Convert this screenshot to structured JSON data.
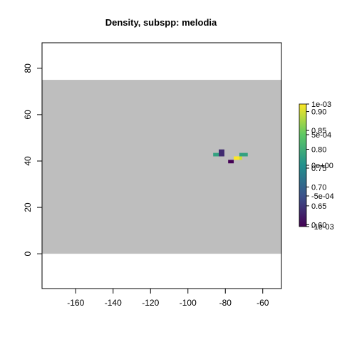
{
  "chart_data": {
    "type": "heatmap",
    "title": "Density, subspp: melodia",
    "xlabel": "",
    "ylabel": "",
    "xlim": [
      -178,
      -50
    ],
    "ylim": [
      -15,
      91
    ],
    "x_ticks": [
      -160,
      -140,
      -120,
      -100,
      -80,
      -60
    ],
    "y_ticks": [
      0,
      20,
      40,
      60,
      80
    ],
    "grid": false,
    "background_region": {
      "x": [
        -178,
        -50
      ],
      "y": [
        0,
        75
      ],
      "color": "#bebebe"
    },
    "cells": [
      {
        "x0": -86.5,
        "x1": -83.5,
        "y0": 42,
        "y1": 43.5,
        "value": 0.00015
      },
      {
        "x0": -83.5,
        "x1": -80.5,
        "y0": 42,
        "y1": 45,
        "value": -0.00075
      },
      {
        "x0": -78.5,
        "x1": -75.5,
        "y0": 39,
        "y1": 40.5,
        "value": -0.001
      },
      {
        "x0": -75.5,
        "x1": -72.5,
        "y0": 40.5,
        "y1": 42,
        "value": 0.001
      },
      {
        "x0": -72.5,
        "x1": -71,
        "y0": 40.5,
        "y1": 42,
        "value": 0.00085
      },
      {
        "x0": -72.5,
        "x1": -68,
        "y0": 42,
        "y1": 43.5,
        "value": 0.00015
      }
    ],
    "colorbar": {
      "range": [
        -0.001,
        0.001
      ],
      "colors": [
        "#440154",
        "#3b528b",
        "#21908d",
        "#5dc863",
        "#fde725"
      ],
      "labels_right": [
        "1e-03",
        "5e-04",
        "0e+00",
        "-5e-04",
        "-1e-03"
      ],
      "label_values_right": [
        0.001,
        0.0005,
        0,
        -0.0005,
        -0.001
      ],
      "labels_left": [
        "0.90",
        "0.85",
        "0.80",
        "0.75",
        "0.70",
        "0.65",
        "0.60"
      ],
      "label_values_left": [
        0.9,
        0.85,
        0.8,
        0.75,
        0.7,
        0.65,
        0.6
      ],
      "left_range": [
        0.595,
        0.92
      ]
    }
  }
}
